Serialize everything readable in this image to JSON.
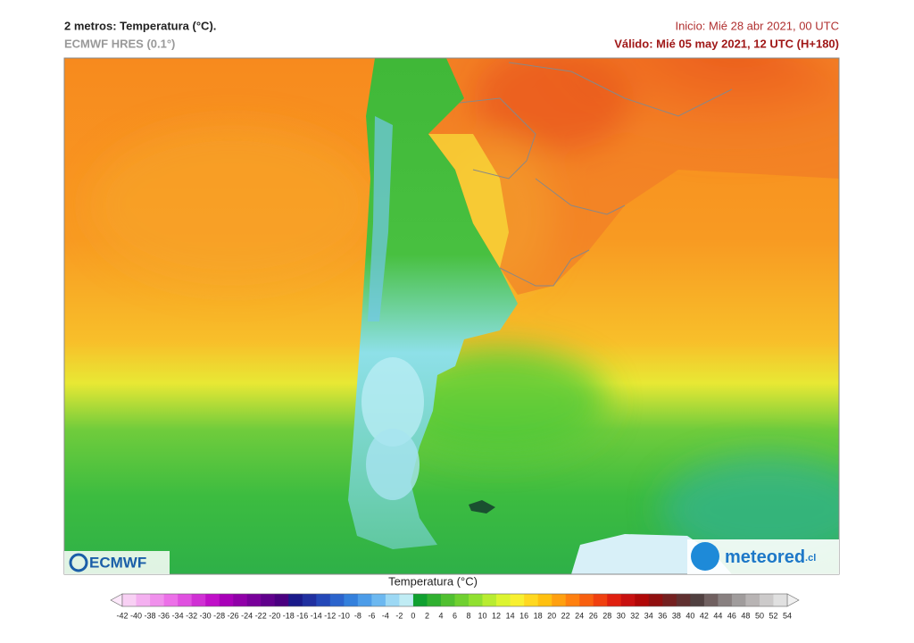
{
  "header": {
    "title": "2 metros: Temperatura (°C).",
    "model": "ECMWF HRES (0.1°)",
    "init": "Inicio: Mié 28 abr 2021, 00 UTC",
    "valid": "Válido: Mié 05 may 2021, 12 UTC (H+180)"
  },
  "logos": {
    "left": "ECMWF",
    "right": "meteored",
    "right_suffix": ".cl"
  },
  "legend": {
    "title": "Temperatura (°C)",
    "ticks": [
      -42,
      -40,
      -38,
      -36,
      -34,
      -32,
      -30,
      -28,
      -26,
      -24,
      -22,
      -20,
      -18,
      -16,
      -14,
      -12,
      -10,
      -8,
      -6,
      -4,
      -2,
      0,
      2,
      4,
      6,
      8,
      10,
      12,
      14,
      16,
      18,
      20,
      22,
      24,
      26,
      28,
      30,
      32,
      34,
      36,
      38,
      40,
      42,
      44,
      46,
      48,
      50,
      52,
      54
    ],
    "colors": [
      "#f8d0f4",
      "#f4b0f0",
      "#f090ec",
      "#ec70e8",
      "#e050e0",
      "#d030d4",
      "#c010c8",
      "#a800b8",
      "#9000a8",
      "#78009a",
      "#60008c",
      "#4a0080",
      "#1a1a8a",
      "#2030a0",
      "#2448b8",
      "#2c64cc",
      "#3480dc",
      "#4c9ce8",
      "#6cb8f0",
      "#9cd8f4",
      "#c0ecf4",
      "#10a030",
      "#30b030",
      "#50c030",
      "#70d030",
      "#90e030",
      "#b8ec30",
      "#dcf430",
      "#f8f030",
      "#ffd820",
      "#ffc010",
      "#ffa010",
      "#ff8010",
      "#f86010",
      "#f04010",
      "#e02010",
      "#c81010",
      "#b00808",
      "#901010",
      "#742020",
      "#603030",
      "#504040",
      "#706060",
      "#888080",
      "#a09c9c",
      "#b8b4b4",
      "#cccaca",
      "#e0e0e0"
    ]
  }
}
